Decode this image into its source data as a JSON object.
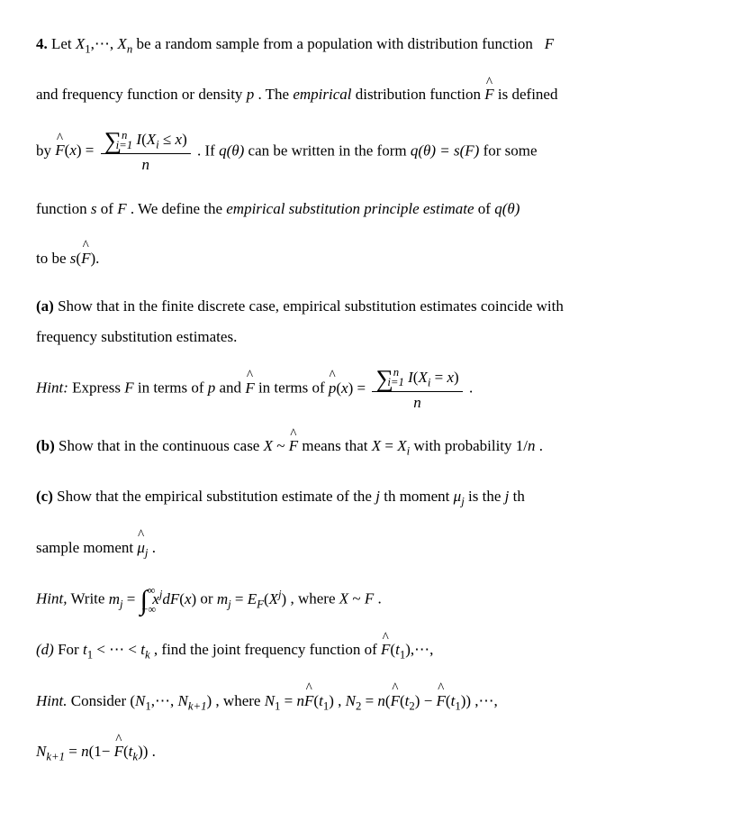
{
  "problem_number": "4.",
  "intro1_a": "Let ",
  "intro1_b": "be a random sample from a population with distribution function",
  "intro2_a": "and frequency function or density ",
  "intro2_b": ". The ",
  "intro2_emph": "empirical",
  "intro2_c": " distribution function ",
  "intro2_d": " is defined",
  "by_text": "by ",
  "if_text": ". If ",
  "q_theta": "q(θ)",
  "written_text": "can be written in the form  ",
  "eq_form": "q(θ) = s(F)",
  "for_some": "for some",
  "func_s_a": "function ",
  "func_s_b": " of ",
  "func_s_c": " . We define the ",
  "esp_emph": "empirical substitution principle estimate",
  "of_qtheta": " of ",
  "to_be": "to be ",
  "part_a_label": "(a)",
  "part_a_text1": " Show that in the finite discrete case, empirical substitution estimates coincide with",
  "part_a_text2": "frequency substitution estimates.",
  "hint_label": "Hint:",
  "hint_a_text_a": " Express ",
  "hint_a_text_b": " in terms of ",
  "hint_a_text_c": " and ",
  "hint_a_text_d": " in terms of ",
  "part_b_label": "(b)",
  "part_b_text_a": " Show that in the continuous case ",
  "part_b_text_b": " means that ",
  "part_b_text_c": " with probability ",
  "part_c_label": "(c)",
  "part_c_text_a": " Show that the empirical substitution estimate of the ",
  "part_c_text_b": " th moment ",
  "part_c_text_c": " is the ",
  "part_c_text_d": " th",
  "sample_moment": "sample moment ",
  "hint_c_label": "Hint,",
  "hint_c_write": " Write ",
  "hint_c_or": " or ",
  "hint_c_where": ", where ",
  "part_d_label": "(d)",
  "part_d_for": " For ",
  "part_d_find": " , find the joint frequency function of ",
  "hint_d_label": "Hint.",
  "hint_d_consider": " Consider ",
  "hint_d_where": " , where ",
  "sym": {
    "X": "X",
    "F": "F",
    "Fhat": "F",
    "p": "p",
    "phat": "p",
    "n": "n",
    "x": "x",
    "s": "s",
    "I": "I",
    "theta": "θ",
    "mu": "μ",
    "muhat": "μ",
    "j": "j",
    "m": "m",
    "E": "E",
    "t": "t",
    "k": "k",
    "N": "N",
    "one": "1",
    "dots": "⋯",
    "tilde": "~",
    "comma": ",",
    "period": ".",
    "leq": "≤",
    "eq": "=",
    "lt": "<",
    "minus": "−",
    "infty": "∞",
    "neg_infty": "−∞",
    "sum": "∑",
    "int": "∫",
    "slash": "/"
  },
  "sub_1": "1",
  "sub_n": "n",
  "sub_i": "i",
  "sub_j": "j",
  "sub_k": "k",
  "sub_2": "2",
  "sub_kp1": "k+1",
  "sup_j": "j",
  "sup_n": "n",
  "bound_i1": "i=1"
}
